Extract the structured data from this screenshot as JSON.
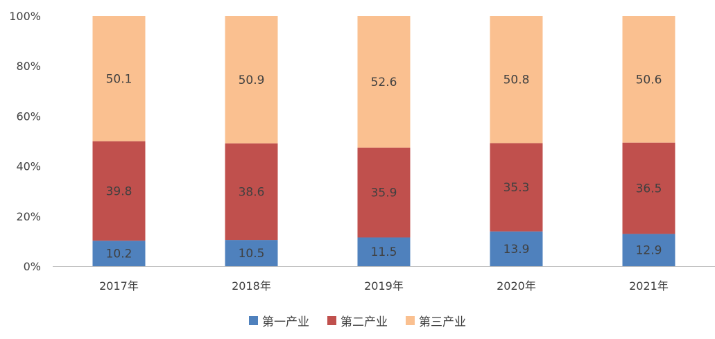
{
  "chart_data": {
    "type": "bar",
    "stacked": true,
    "percent_stacked": true,
    "categories": [
      "2017年",
      "2018年",
      "2019年",
      "2020年",
      "2021年"
    ],
    "series": [
      {
        "name": "第一产业",
        "values": [
          10.2,
          10.5,
          11.5,
          13.9,
          12.9
        ],
        "color": "#4f81bd"
      },
      {
        "name": "第二产业",
        "values": [
          39.8,
          38.6,
          35.9,
          35.3,
          36.5
        ],
        "color": "#c0504d"
      },
      {
        "name": "第三产业",
        "values": [
          50.1,
          50.9,
          52.6,
          50.8,
          50.6
        ],
        "color": "#fac090"
      }
    ],
    "y_ticks": [
      "0%",
      "20%",
      "40%",
      "60%",
      "80%",
      "100%"
    ],
    "ylim": [
      0,
      100
    ],
    "grid": false,
    "legend_position": "bottom",
    "title": "",
    "xlabel": "",
    "ylabel": ""
  }
}
